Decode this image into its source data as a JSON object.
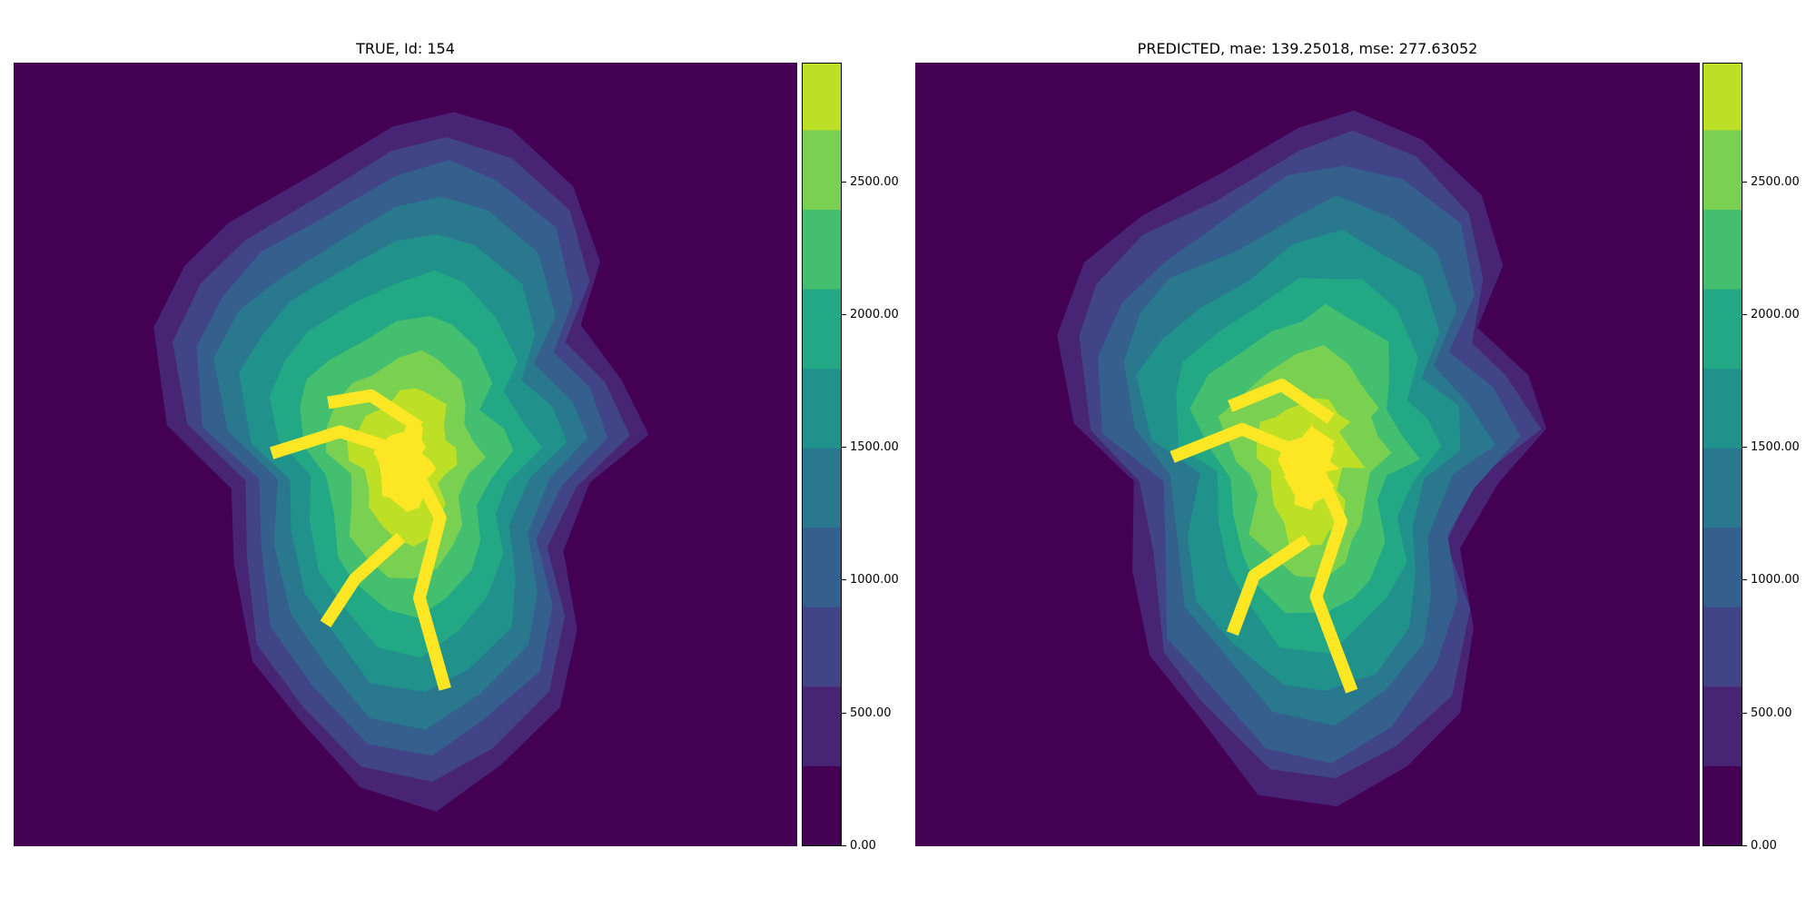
{
  "chart_data": [
    {
      "type": "heatmap",
      "title": "TRUE, Id: 154",
      "colormap": "viridis",
      "levels": [
        0,
        300,
        600,
        900,
        1200,
        1500,
        1800,
        2100,
        2400,
        2700,
        2950
      ],
      "colorbar": {
        "ticks": [
          0,
          500,
          1000,
          1500,
          2000,
          2500
        ],
        "tick_labels": [
          "0.00",
          "500.00",
          "1000.00",
          "1500.00",
          "2000.00",
          "2500.00"
        ],
        "range": [
          0,
          2950
        ]
      }
    },
    {
      "type": "heatmap",
      "title": "PREDICTED, mae: 139.25018, mse: 277.63052",
      "colormap": "viridis",
      "levels": [
        0,
        300,
        600,
        900,
        1200,
        1500,
        1800,
        2100,
        2400,
        2700,
        2950
      ],
      "colorbar": {
        "ticks": [
          0,
          500,
          1000,
          1500,
          2000,
          2500
        ],
        "tick_labels": [
          "0.00",
          "500.00",
          "1000.00",
          "1500.00",
          "2000.00",
          "2500.00"
        ],
        "range": [
          0,
          2950
        ]
      }
    }
  ],
  "colors": [
    "#440154",
    "#482475",
    "#414487",
    "#355f8d",
    "#2a788e",
    "#21918c",
    "#22a884",
    "#44bf70",
    "#7ad151",
    "#bddf26",
    "#fde725"
  ]
}
